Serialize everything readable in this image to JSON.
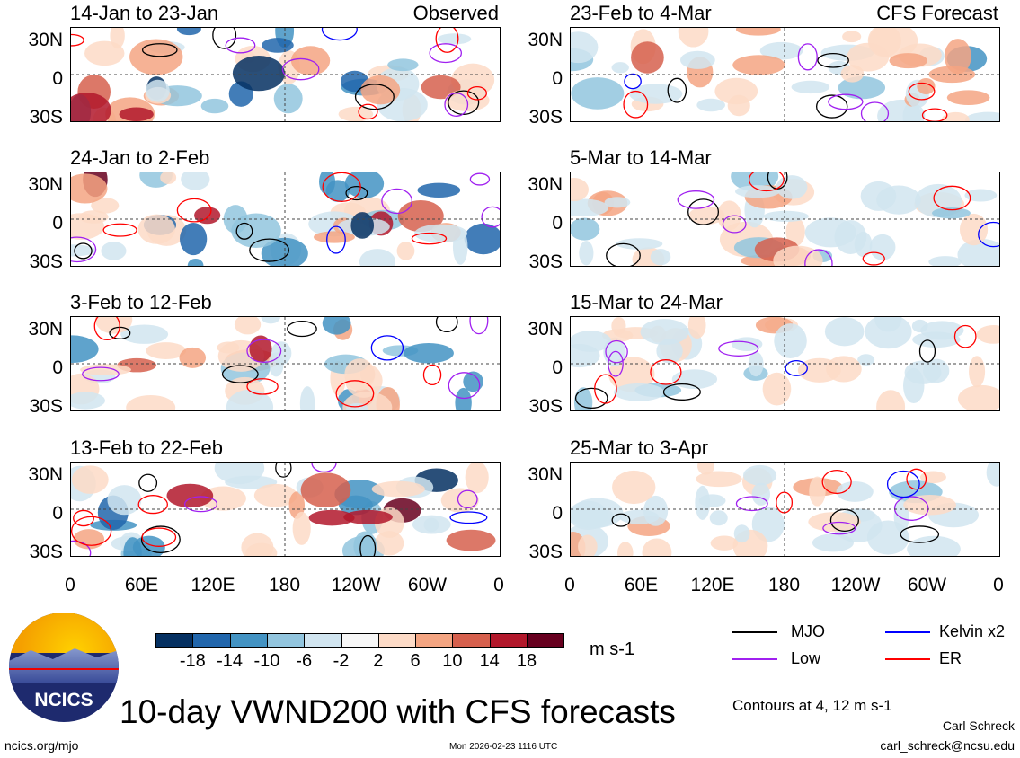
{
  "chart_data": {
    "type": "heatmap",
    "title": "10-day VWND200 with CFS forecasts",
    "variable": "VWND200",
    "units": "m s-1",
    "contours_note": "Contours at 4, 12 m s-1",
    "columns": [
      {
        "label": "Observed",
        "panels": [
          "14-Jan to 23-Jan",
          "24-Jan to 2-Feb",
          "3-Feb to 12-Feb",
          "13-Feb to 22-Feb"
        ]
      },
      {
        "label": "CFS Forecast",
        "panels": [
          "23-Feb to 4-Mar",
          "5-Mar to 14-Mar",
          "15-Mar to 24-Mar",
          "25-Mar to 3-Apr"
        ]
      }
    ],
    "y_ticks": [
      "30N",
      "0",
      "30S"
    ],
    "x_ticks": [
      "0",
      "60E",
      "120E",
      "180",
      "120W",
      "60W",
      "0"
    ],
    "colorbar": {
      "ticks": [
        "-18",
        "-14",
        "-10",
        "-6",
        "-2",
        "2",
        "6",
        "10",
        "14",
        "18"
      ],
      "colors": [
        "#053061",
        "#2166ac",
        "#4393c3",
        "#92c5de",
        "#d1e5f0",
        "#f7f7f7",
        "#fddbc7",
        "#f4a582",
        "#d6604d",
        "#b2182b",
        "#67001f"
      ]
    },
    "legend": [
      {
        "label": "MJO",
        "color": "#000000"
      },
      {
        "label": "Kelvin x2",
        "color": "#0000ff"
      },
      {
        "label": "Low",
        "color": "#a020f0"
      },
      {
        "label": "ER",
        "color": "#ff0000"
      }
    ]
  },
  "footer": {
    "logo_text": "NCICS",
    "site": "ncics.org/mjo",
    "timestamp": "Mon 2026-02-23 1116 UTC",
    "author": "Carl Schreck",
    "email": "carl_schreck@ncsu.edu"
  }
}
